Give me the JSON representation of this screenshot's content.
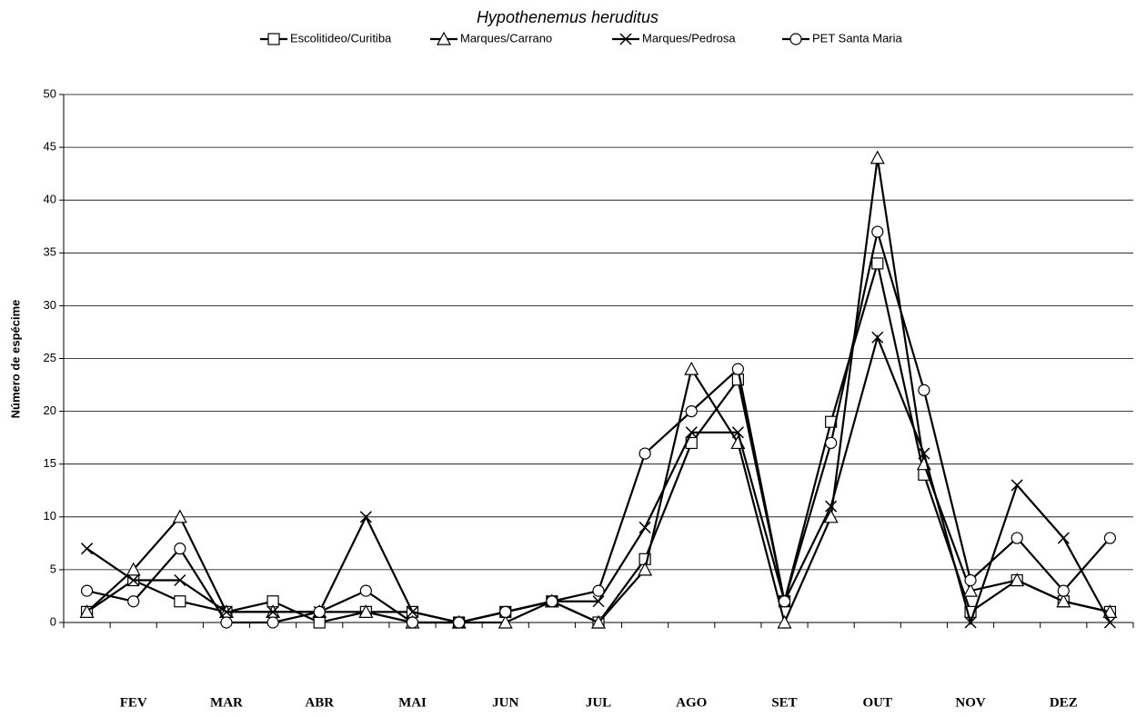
{
  "chart_data": {
    "type": "line",
    "title": "Hypothenemus heruditus",
    "y_label": "Número de espécime",
    "categories": [
      null,
      "FEV",
      null,
      "MAR",
      null,
      "ABR",
      null,
      "MAI",
      null,
      "JUN",
      null,
      "JUL",
      null,
      "AGO",
      null,
      "SET",
      null,
      "OUT",
      null,
      "NOV",
      null,
      "DEZ",
      null
    ],
    "series": [
      {
        "name": "Escolitideo/Curitiba",
        "color": "#000000",
        "marker": "square",
        "values": [
          1,
          4,
          2,
          1,
          2,
          0,
          1,
          1,
          0,
          1,
          2,
          0,
          6,
          17,
          23,
          2,
          19,
          34,
          14,
          1,
          4,
          2,
          1
        ]
      },
      {
        "name": "Marques/Carrano",
        "color": "#000000",
        "marker": "triangle",
        "values": [
          1,
          5,
          10,
          1,
          1,
          1,
          1,
          0,
          0,
          0,
          2,
          0,
          5,
          24,
          17,
          0,
          10,
          44,
          15,
          3,
          4,
          2,
          1
        ]
      },
      {
        "name": "Marques/Pedrosa",
        "color": "#000000",
        "marker": "x",
        "values": [
          7,
          4,
          4,
          1,
          1,
          1,
          10,
          1,
          0,
          1,
          2,
          2,
          9,
          18,
          18,
          2,
          11,
          27,
          16,
          0,
          13,
          8,
          0
        ]
      },
      {
        "name": "PET Santa Maria",
        "color": "#000000",
        "marker": "circle",
        "values": [
          3,
          2,
          7,
          0,
          0,
          1,
          3,
          0,
          0,
          1,
          2,
          3,
          16,
          20,
          24,
          2,
          17,
          37,
          22,
          4,
          8,
          3,
          8
        ]
      }
    ],
    "ylim": [
      0,
      50
    ],
    "yticks": [
      0,
      5,
      10,
      15,
      20,
      25,
      30,
      35,
      40,
      45,
      50
    ],
    "grid": true,
    "legend": "top"
  }
}
